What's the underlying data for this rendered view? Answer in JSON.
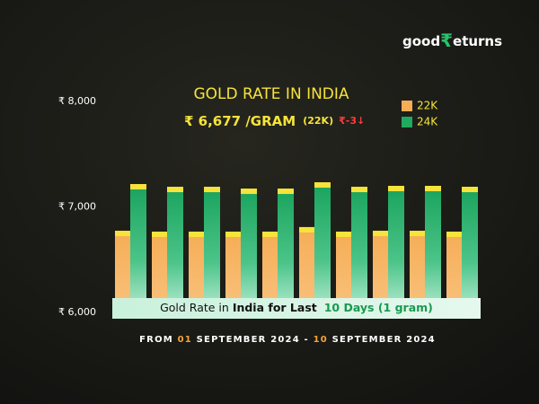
{
  "chart_data": {
    "type": "bar",
    "brand": {
      "first": "good",
      "symbol": "₹",
      "rest": "eturns"
    },
    "title": "GOLD RATE IN INDIA",
    "headline": {
      "price": "₹ 6,677 /GRAM",
      "purity": "(22K)",
      "change": "₹-3↓"
    },
    "banner": {
      "lead": "Gold Rate in",
      "bold": "India for Last",
      "accent": "10 Days (1 gram)"
    },
    "footer": {
      "from": "FROM",
      "start_day": "01",
      "start_rest": "SEPTEMBER 2024 -",
      "end_day": "10",
      "end_rest": "SEPTEMBER 2024"
    },
    "categories": [
      null,
      null,
      null,
      null,
      null,
      null,
      null,
      null,
      null,
      null
    ],
    "series": [
      {
        "name": "22K",
        "color": "#f6ad55",
        "values": [
          6774,
          6766,
          6766,
          6766,
          6766,
          6809,
          6766,
          6774,
          6774,
          6766
        ]
      },
      {
        "name": "24K",
        "color": "#1faa5f",
        "values": [
          7217,
          7191,
          7191,
          7174,
          7174,
          7234,
          7191,
          7200,
          7200,
          7191
        ]
      }
    ],
    "ylim": [
      6000,
      8000
    ],
    "yticks": [
      {
        "value": 6000,
        "label": "₹ 6,000"
      },
      {
        "value": 7000,
        "label": "₹ 7,000"
      },
      {
        "value": 8000,
        "label": "₹ 8,000"
      }
    ]
  }
}
